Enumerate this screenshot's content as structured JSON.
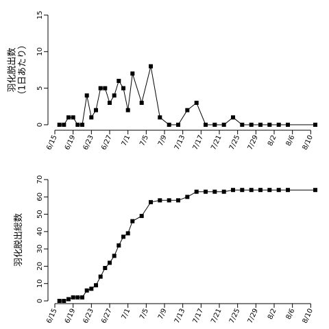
{
  "chart_data": [
    {
      "type": "line",
      "ylabel_lines": [
        "羽化脱出数",
        "（1日あたり）"
      ],
      "ylim": [
        0,
        15
      ],
      "yticks": [
        0,
        5,
        10,
        15
      ],
      "xlim": [
        0,
        57
      ],
      "xticks": [
        {
          "x": 0,
          "label": "6/15"
        },
        {
          "x": 4,
          "label": "6/19"
        },
        {
          "x": 8,
          "label": "6/23"
        },
        {
          "x": 12,
          "label": "6/27"
        },
        {
          "x": 16,
          "label": "7/1"
        },
        {
          "x": 20,
          "label": "7/5"
        },
        {
          "x": 24,
          "label": "7/9"
        },
        {
          "x": 28,
          "label": "7/13"
        },
        {
          "x": 32,
          "label": "7/17"
        },
        {
          "x": 36,
          "label": "7/21"
        },
        {
          "x": 40,
          "label": "7/25"
        },
        {
          "x": 44,
          "label": "7/29"
        },
        {
          "x": 48,
          "label": "8/2"
        },
        {
          "x": 52,
          "label": "8/6"
        },
        {
          "x": 56,
          "label": "8/10"
        }
      ],
      "series": [
        {
          "marker": "square",
          "x": [
            1,
            2,
            3,
            4,
            5,
            6,
            7,
            8,
            9,
            10,
            11,
            12,
            13,
            14,
            15,
            16,
            17,
            19,
            21,
            23,
            25,
            27,
            29,
            31,
            33,
            35,
            37,
            39,
            41,
            43,
            45,
            47,
            49,
            51,
            57
          ],
          "y": [
            0,
            0,
            1,
            1,
            0,
            0,
            4,
            1,
            2,
            5,
            5,
            3,
            4,
            6,
            5,
            2,
            7,
            3,
            8,
            1,
            0,
            0,
            2,
            3,
            0,
            0,
            0,
            1,
            0,
            0,
            0,
            0,
            0,
            0,
            0
          ]
        }
      ]
    },
    {
      "type": "line",
      "ylabel_lines": [
        "羽化脱出総数"
      ],
      "ylim": [
        0,
        70
      ],
      "yticks": [
        0,
        10,
        20,
        30,
        40,
        50,
        60,
        70
      ],
      "xlim": [
        0,
        57
      ],
      "xticks": [
        {
          "x": 0,
          "label": "6/15"
        },
        {
          "x": 4,
          "label": "6/19"
        },
        {
          "x": 8,
          "label": "6/23"
        },
        {
          "x": 12,
          "label": "6/27"
        },
        {
          "x": 16,
          "label": "7/1"
        },
        {
          "x": 20,
          "label": "7/5"
        },
        {
          "x": 24,
          "label": "7/9"
        },
        {
          "x": 28,
          "label": "7/13"
        },
        {
          "x": 32,
          "label": "7/17"
        },
        {
          "x": 36,
          "label": "7/21"
        },
        {
          "x": 40,
          "label": "7/25"
        },
        {
          "x": 44,
          "label": "7/29"
        },
        {
          "x": 48,
          "label": "8/2"
        },
        {
          "x": 52,
          "label": "8/6"
        },
        {
          "x": 56,
          "label": "8/10"
        }
      ],
      "series": [
        {
          "marker": "square",
          "x": [
            1,
            2,
            3,
            4,
            5,
            6,
            7,
            8,
            9,
            10,
            11,
            12,
            13,
            14,
            15,
            16,
            17,
            19,
            21,
            23,
            25,
            27,
            29,
            31,
            33,
            35,
            37,
            39,
            41,
            43,
            45,
            47,
            49,
            51,
            57
          ],
          "y": [
            0,
            0,
            1,
            2,
            2,
            2,
            6,
            7,
            9,
            14,
            19,
            22,
            26,
            32,
            37,
            39,
            46,
            49,
            57,
            58,
            58,
            58,
            60,
            63,
            63,
            63,
            63,
            64,
            64,
            64,
            64,
            64,
            64,
            64,
            64
          ]
        }
      ]
    }
  ]
}
